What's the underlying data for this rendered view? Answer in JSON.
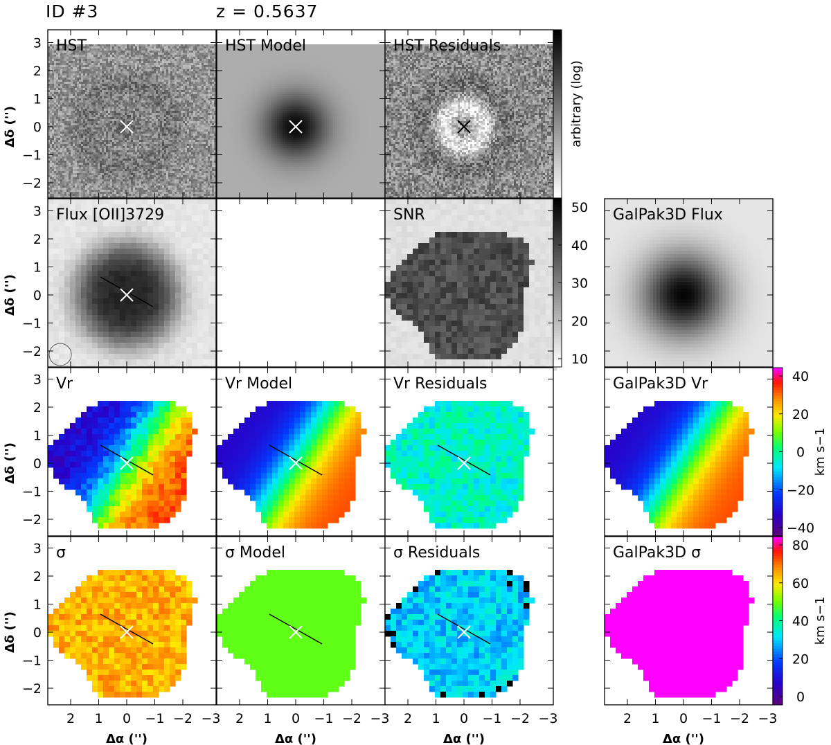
{
  "header": {
    "id_label": "ID #3",
    "redshift_label": "z = 0.5637"
  },
  "axes": {
    "ylabel": "Δδ ('')",
    "xlabel": "Δα ('')",
    "yticks": [
      "3",
      "2",
      "1",
      "0",
      "−1",
      "−2"
    ],
    "xticks": [
      "2",
      "1",
      "0",
      "−1",
      "−2",
      "−3"
    ]
  },
  "panels": {
    "hst": "HST",
    "hst_model": "HST Model",
    "hst_residuals": "HST Residuals",
    "flux": "Flux [OII]3729",
    "snr": "SNR",
    "galpak_flux": "GalPak3D Flux",
    "vr": "Vr",
    "vr_model": "Vr Model",
    "vr_residuals": "Vr Residuals",
    "galpak_vr": "GalPak3D Vr",
    "sigma": "σ",
    "sigma_model": "σ Model",
    "sigma_residuals": "σ Residuals",
    "galpak_sigma": "GalPak3D σ"
  },
  "colorbars": {
    "hst": {
      "label": "arbitrary (log)"
    },
    "snr": {
      "ticks": [
        "50",
        "40",
        "30",
        "20",
        "10"
      ]
    },
    "velocity": {
      "label": "km s−1",
      "ticks": [
        "40",
        "20",
        "0",
        "−20",
        "−40"
      ]
    },
    "dispersion": {
      "label": "km s−1",
      "ticks": [
        "80",
        "60",
        "40",
        "20",
        "0"
      ]
    }
  },
  "colors": {
    "frame": "#000000",
    "background": "#ffffff"
  }
}
